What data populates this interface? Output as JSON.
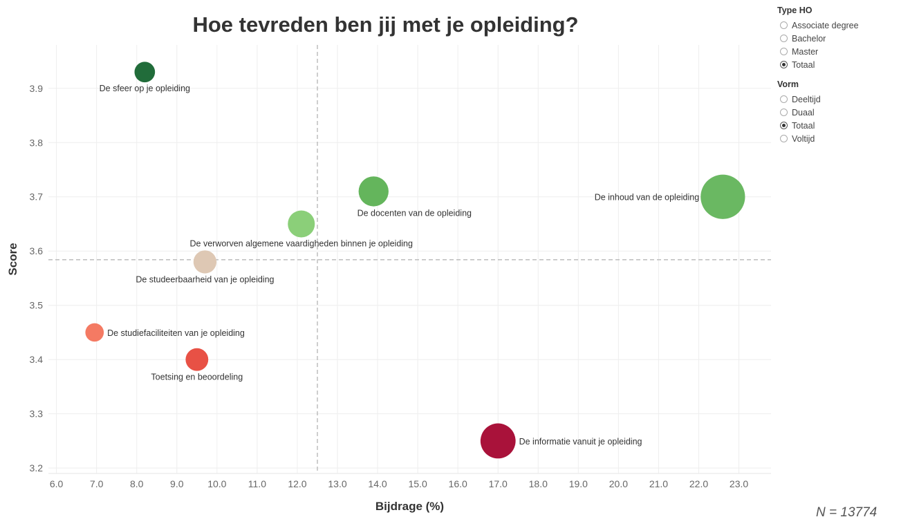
{
  "chart_data": {
    "type": "scatter",
    "title": "Hoe tevreden ben jij met je opleiding?",
    "xlabel": "Bijdrage (%)",
    "ylabel": "Score",
    "xlim": [
      5.8,
      23.8
    ],
    "ylim": [
      3.19,
      3.98
    ],
    "x_ticks": [
      "6.0",
      "7.0",
      "8.0",
      "9.0",
      "10.0",
      "11.0",
      "12.0",
      "13.0",
      "14.0",
      "15.0",
      "16.0",
      "17.0",
      "18.0",
      "19.0",
      "20.0",
      "21.0",
      "22.0",
      "23.0"
    ],
    "y_ticks": [
      "3.2",
      "3.3",
      "3.4",
      "3.5",
      "3.6",
      "3.7",
      "3.8",
      "3.9"
    ],
    "reference_lines": {
      "x": 12.5,
      "y": 3.584
    },
    "grid": true,
    "points": [
      {
        "label": "De sfeer op je opleiding",
        "x": 8.2,
        "y": 3.93,
        "size": 8.2,
        "color": "#216c3a",
        "label_pos": "below"
      },
      {
        "label": "De docenten van de opleiding",
        "x": 13.9,
        "y": 3.71,
        "size": 13.9,
        "color": "#64b55c",
        "label_pos": "below-right"
      },
      {
        "label": "De inhoud van de opleiding",
        "x": 22.6,
        "y": 3.7,
        "size": 22.6,
        "color": "#6ab862",
        "label_pos": "left"
      },
      {
        "label": "De verworven algemene vaardigheden binnen je opleiding",
        "x": 12.1,
        "y": 3.65,
        "size": 12.1,
        "color": "#8bcf79",
        "label_pos": "below"
      },
      {
        "label": "De studeerbaarheid van je opleiding",
        "x": 9.7,
        "y": 3.58,
        "size": 9.7,
        "color": "#dec8b4",
        "label_pos": "below"
      },
      {
        "label": "De studiefaciliteiten van je opleiding",
        "x": 6.95,
        "y": 3.45,
        "size": 6.95,
        "color": "#f47a63",
        "label_pos": "right"
      },
      {
        "label": "Toetsing en beoordeling",
        "x": 9.5,
        "y": 3.4,
        "size": 9.5,
        "color": "#e85145",
        "label_pos": "below"
      },
      {
        "label": "De informatie vanuit je opleiding",
        "x": 17.0,
        "y": 3.25,
        "size": 17.0,
        "color": "#a9123a",
        "label_pos": "right"
      }
    ]
  },
  "filters": {
    "type_ho": {
      "title": "Type HO",
      "options": [
        "Associate degree",
        "Bachelor",
        "Master",
        "Totaal"
      ],
      "selected": "Totaal"
    },
    "vorm": {
      "title": "Vorm",
      "options": [
        "Deeltijd",
        "Duaal",
        "Totaal",
        "Voltijd"
      ],
      "selected": "Totaal"
    }
  },
  "footer": {
    "n_label": "N = 13774"
  }
}
